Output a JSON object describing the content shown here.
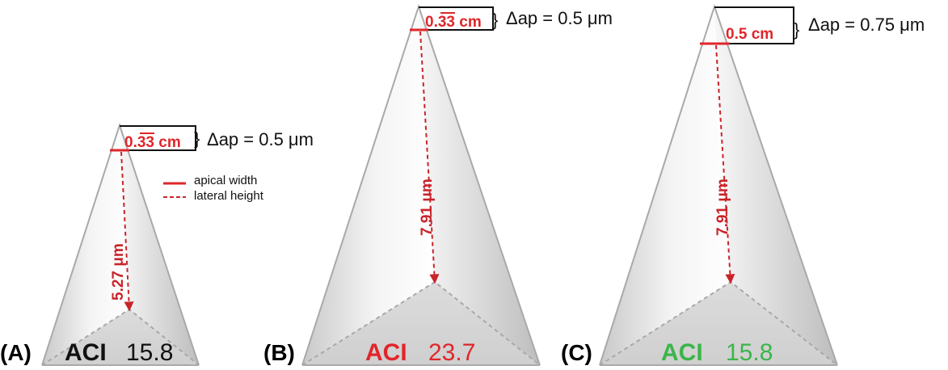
{
  "panels": [
    {
      "letter": "(A)",
      "aci_label": "ACI",
      "aci_value": "15.8",
      "aci_color": "#111111",
      "apical_width": "0.33 cm",
      "apical_overline": "33",
      "delta_ap": "Δap = 0.5 μm",
      "lateral_height": "5.27 μm"
    },
    {
      "letter": "(B)",
      "aci_label": "ACI",
      "aci_value": "23.7",
      "aci_color": "#e0262b",
      "apical_width": "0.33 cm",
      "apical_overline": "33",
      "delta_ap": "Δap = 0.5 μm",
      "lateral_height": "7.91 μm"
    },
    {
      "letter": "(C)",
      "aci_label": "ACI",
      "aci_value": "15.8",
      "aci_color": "#3bb54a",
      "apical_width": "0.5 cm",
      "apical_overline": "",
      "delta_ap": "Δap = 0.75 μm",
      "lateral_height": "7.91 μm"
    }
  ],
  "legend": {
    "solid_label": "apical width",
    "dashed_label": "lateral height"
  },
  "colors": {
    "apex_red": "#e0262b",
    "height_red": "#c9242a",
    "pyramid_edge": "#a9a9a9"
  }
}
